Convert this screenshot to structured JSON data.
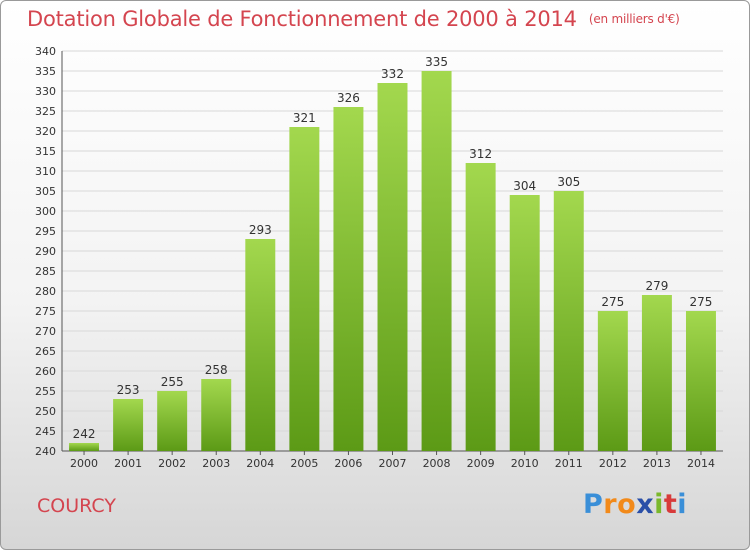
{
  "header": {
    "title": "Dotation Globale de Fonctionnement de 2000 à 2014",
    "subtitle": "(en milliers d'€)"
  },
  "commune": "COURCY",
  "logo": {
    "letters": [
      "P",
      "r",
      "o",
      "x",
      "i",
      "t",
      "i"
    ],
    "colors": [
      "#3a8fd8",
      "#f28a1a",
      "#f28a1a",
      "#2a4fa8",
      "#7ab82c",
      "#d83a3a",
      "#3a8fd8"
    ]
  },
  "colors": {
    "bar_top": "#a3d84e",
    "bar_bottom": "#5c9a16",
    "title": "#d4454f",
    "grid": "#d8d8d8"
  },
  "chart_data": {
    "type": "bar",
    "title": "Dotation Globale de Fonctionnement de 2000 à 2014",
    "subtitle": "(en milliers d'€)",
    "categories": [
      "2000",
      "2001",
      "2002",
      "2003",
      "2004",
      "2005",
      "2006",
      "2007",
      "2008",
      "2009",
      "2010",
      "2011",
      "2012",
      "2013",
      "2014"
    ],
    "values": [
      242,
      253,
      255,
      258,
      293,
      321,
      326,
      332,
      335,
      312,
      304,
      305,
      275,
      279,
      275
    ],
    "ylim": [
      240,
      340
    ],
    "ytick_step": 5,
    "grid": true,
    "xlabel": "",
    "ylabel": ""
  }
}
